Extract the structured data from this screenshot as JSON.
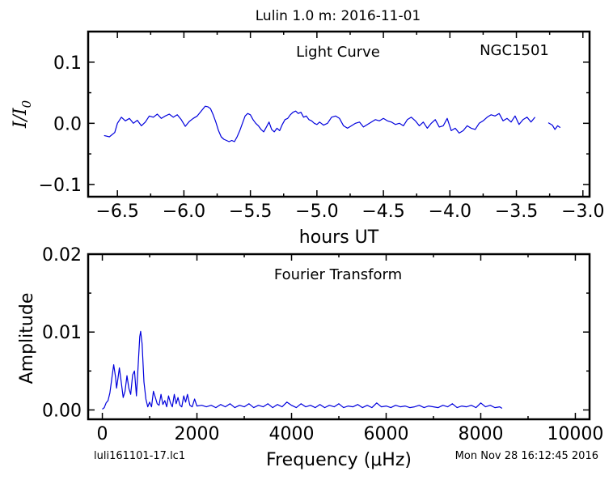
{
  "title": "Lulin 1.0 m:  2016-11-01",
  "footer": {
    "left": "luli161101-17.lc1",
    "right": "Mon Nov 28 16:12:45 2016"
  },
  "colors": {
    "line": "#0000dd",
    "axes": "#000000"
  },
  "chart_data": [
    {
      "type": "line",
      "title": "Light Curve",
      "annotation": "NGC1501",
      "xlabel": "hours UT",
      "ylabel_main": "I/I",
      "ylabel_sub": "0",
      "xlim": [
        -6.72,
        -2.95
      ],
      "ylim": [
        -0.12,
        0.15
      ],
      "xticks": [
        -6.5,
        -6.0,
        -5.5,
        -5.0,
        -4.5,
        -4.0,
        -3.5,
        -3.0
      ],
      "xtick_labels": [
        "−6.5",
        "−6.0",
        "−5.5",
        "−5.0",
        "−4.5",
        "−4.0",
        "−3.5",
        "−3.0"
      ],
      "yticks": [
        -0.1,
        0.0,
        0.1
      ],
      "ytick_labels": [
        "−0.1",
        "0.0",
        "0.1"
      ],
      "grid": false,
      "series": [
        {
          "x": [
            -6.6,
            -6.56,
            -6.52,
            -6.5,
            -6.47,
            -6.44,
            -6.41,
            -6.38,
            -6.35,
            -6.32,
            -6.29,
            -6.26,
            -6.23,
            -6.2,
            -6.17,
            -6.14,
            -6.11,
            -6.08,
            -6.05,
            -6.02,
            -5.99,
            -5.96,
            -5.93,
            -5.9,
            -5.87,
            -5.84,
            -5.82,
            -5.8,
            -5.78,
            -5.76,
            -5.74,
            -5.72,
            -5.7,
            -5.68,
            -5.66,
            -5.64,
            -5.62,
            -5.6,
            -5.58,
            -5.56,
            -5.54,
            -5.52,
            -5.5,
            -5.48,
            -5.46,
            -5.44,
            -5.42,
            -5.4,
            -5.38,
            -5.36,
            -5.34,
            -5.32,
            -5.3,
            -5.28,
            -5.26,
            -5.24,
            -5.22,
            -5.2,
            -5.18,
            -5.16,
            -5.14,
            -5.12,
            -5.1,
            -5.08,
            -5.06,
            -5.04,
            -5.02,
            -5.0,
            -4.98,
            -4.95,
            -4.92,
            -4.89,
            -4.86,
            -4.83,
            -4.8,
            -4.77,
            -4.74,
            -4.71,
            -4.68,
            -4.65,
            -4.62,
            -4.59,
            -4.56,
            -4.53,
            -4.5,
            -4.47,
            -4.44,
            -4.41,
            -4.38,
            -4.35,
            -4.32,
            -4.29,
            -4.26,
            -4.23,
            -4.2,
            -4.17,
            -4.14,
            -4.11,
            -4.08,
            -4.05,
            -4.02,
            -3.99,
            -3.96,
            -3.93,
            -3.9,
            -3.87,
            -3.84,
            -3.81,
            -3.78,
            -3.75,
            -3.72,
            -3.69,
            -3.66,
            -3.63,
            -3.6,
            -3.57,
            -3.54,
            -3.51,
            -3.48,
            -3.45,
            -3.42,
            -3.39,
            -3.36
          ],
          "y": [
            -0.02,
            -0.022,
            -0.015,
            0.0,
            0.01,
            0.004,
            0.008,
            0.0,
            0.005,
            -0.004,
            0.002,
            0.012,
            0.01,
            0.015,
            0.008,
            0.012,
            0.015,
            0.01,
            0.014,
            0.006,
            -0.005,
            0.003,
            0.008,
            0.012,
            0.02,
            0.028,
            0.027,
            0.024,
            0.014,
            0.002,
            -0.012,
            -0.022,
            -0.026,
            -0.028,
            -0.03,
            -0.028,
            -0.03,
            -0.022,
            -0.012,
            0.0,
            0.012,
            0.016,
            0.014,
            0.006,
            0.0,
            -0.004,
            -0.01,
            -0.014,
            -0.006,
            0.002,
            -0.01,
            -0.014,
            -0.008,
            -0.012,
            -0.002,
            0.006,
            0.008,
            0.014,
            0.018,
            0.02,
            0.016,
            0.018,
            0.01,
            0.012,
            0.006,
            0.004,
            0.0,
            -0.002,
            0.002,
            -0.003,
            0.0,
            0.01,
            0.012,
            0.008,
            -0.004,
            -0.008,
            -0.004,
            0.0,
            0.002,
            -0.006,
            -0.002,
            0.002,
            0.006,
            0.004,
            0.008,
            0.004,
            0.002,
            -0.002,
            0.0,
            -0.004,
            0.006,
            0.01,
            0.004,
            -0.004,
            0.002,
            -0.008,
            0.0,
            0.006,
            -0.006,
            -0.004,
            0.008,
            -0.012,
            -0.008,
            -0.016,
            -0.012,
            -0.004,
            -0.008,
            -0.01,
            0.0,
            0.004,
            0.01,
            0.014,
            0.012,
            0.016,
            0.004,
            0.008,
            0.002,
            0.012,
            -0.002,
            0.006,
            0.01,
            0.002,
            0.01
          ]
        },
        {
          "x": [
            -3.26,
            -3.23,
            -3.21,
            -3.19,
            -3.17
          ],
          "y": [
            0.001,
            -0.003,
            -0.01,
            -0.004,
            -0.007
          ]
        }
      ]
    },
    {
      "type": "line",
      "title": "Fourier Transform",
      "xlabel": "Frequency (μHz)",
      "ylabel": "Amplitude",
      "xlim": [
        -300,
        10300
      ],
      "ylim": [
        -0.0012,
        0.02
      ],
      "xticks": [
        0,
        2000,
        4000,
        6000,
        8000,
        10000
      ],
      "xtick_labels": [
        "0",
        "2000",
        "4000",
        "6000",
        "8000",
        "10000"
      ],
      "yticks": [
        0.0,
        0.01,
        0.02
      ],
      "ytick_labels": [
        "0.00",
        "0.01",
        "0.02"
      ],
      "grid": false,
      "series": [
        {
          "x": [
            0,
            40,
            80,
            120,
            160,
            200,
            240,
            280,
            300,
            330,
            360,
            400,
            440,
            480,
            520,
            560,
            600,
            640,
            680,
            720,
            760,
            790,
            810,
            840,
            880,
            920,
            960,
            1000,
            1040,
            1080,
            1120,
            1160,
            1200,
            1240,
            1280,
            1320,
            1360,
            1400,
            1440,
            1480,
            1520,
            1560,
            1600,
            1640,
            1680,
            1720,
            1760,
            1800,
            1850,
            1900,
            1950,
            2000,
            2100,
            2200,
            2300,
            2400,
            2500,
            2600,
            2700,
            2800,
            2900,
            3000,
            3100,
            3200,
            3300,
            3400,
            3500,
            3600,
            3700,
            3800,
            3900,
            4000,
            4100,
            4200,
            4300,
            4400,
            4500,
            4600,
            4700,
            4800,
            4900,
            5000,
            5100,
            5200,
            5300,
            5400,
            5500,
            5600,
            5700,
            5800,
            5900,
            6000,
            6100,
            6200,
            6300,
            6400,
            6500,
            6600,
            6700,
            6800,
            6900,
            7000,
            7100,
            7200,
            7300,
            7400,
            7500,
            7600,
            7700,
            7800,
            7900,
            8000,
            8100,
            8200,
            8300,
            8400,
            8450
          ],
          "y": [
            0.0001,
            0.0003,
            0.0009,
            0.0012,
            0.0022,
            0.004,
            0.0058,
            0.0042,
            0.0028,
            0.004,
            0.0054,
            0.0036,
            0.0016,
            0.0024,
            0.0044,
            0.0028,
            0.002,
            0.0045,
            0.005,
            0.0018,
            0.006,
            0.0094,
            0.0101,
            0.0085,
            0.0036,
            0.0014,
            0.0004,
            0.001,
            0.0004,
            0.0024,
            0.0016,
            0.0008,
            0.0006,
            0.002,
            0.0007,
            0.0012,
            0.0004,
            0.0018,
            0.0009,
            0.0004,
            0.002,
            0.0008,
            0.0016,
            0.0006,
            0.0004,
            0.0018,
            0.001,
            0.002,
            0.0006,
            0.0004,
            0.0014,
            0.0005,
            0.0006,
            0.0004,
            0.0006,
            0.0003,
            0.0007,
            0.0004,
            0.0008,
            0.0003,
            0.0006,
            0.0004,
            0.0008,
            0.0003,
            0.0006,
            0.0004,
            0.0008,
            0.0003,
            0.0007,
            0.0004,
            0.001,
            0.0006,
            0.0003,
            0.0008,
            0.0004,
            0.0006,
            0.0003,
            0.0007,
            0.0003,
            0.0006,
            0.0004,
            0.0008,
            0.0003,
            0.0005,
            0.0004,
            0.0007,
            0.0003,
            0.0006,
            0.0003,
            0.0009,
            0.0004,
            0.0005,
            0.0003,
            0.0006,
            0.0004,
            0.0005,
            0.0003,
            0.0004,
            0.0006,
            0.0003,
            0.0005,
            0.0004,
            0.0003,
            0.0006,
            0.0004,
            0.0008,
            0.0003,
            0.0005,
            0.0004,
            0.0006,
            0.0003,
            0.0009,
            0.0004,
            0.0006,
            0.0003,
            0.0004,
            0.0002
          ]
        }
      ]
    }
  ]
}
